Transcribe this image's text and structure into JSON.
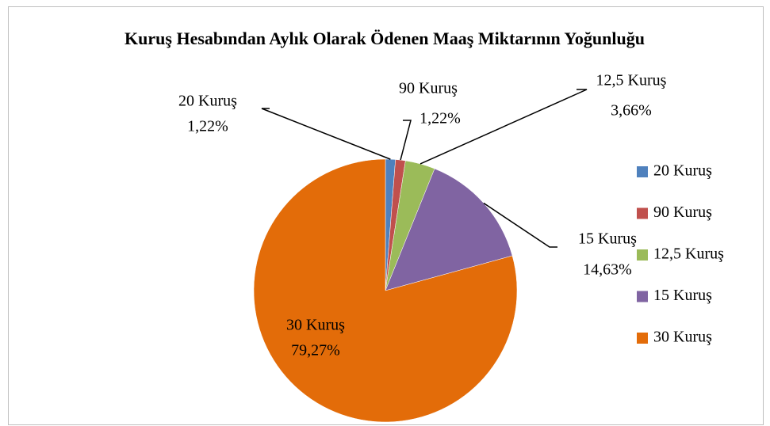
{
  "chart_data": {
    "type": "pie",
    "title": "Kuruş Hesabından Aylık Olarak Ödenen Maaş  Miktarının Yoğunluğu",
    "categories": [
      "20 Kuruş",
      "90 Kuruş",
      "12,5 Kuruş",
      "15 Kuruş",
      "30 Kuruş"
    ],
    "values": [
      1.22,
      1.22,
      3.66,
      14.63,
      79.27
    ],
    "value_labels": [
      "1,22%",
      "1,22%",
      "3,66%",
      "14,63%",
      "79,27%"
    ],
    "colors": [
      "#4f81bd",
      "#c0504d",
      "#9bbb59",
      "#8064a2",
      "#e36c09"
    ],
    "legend": "right"
  }
}
